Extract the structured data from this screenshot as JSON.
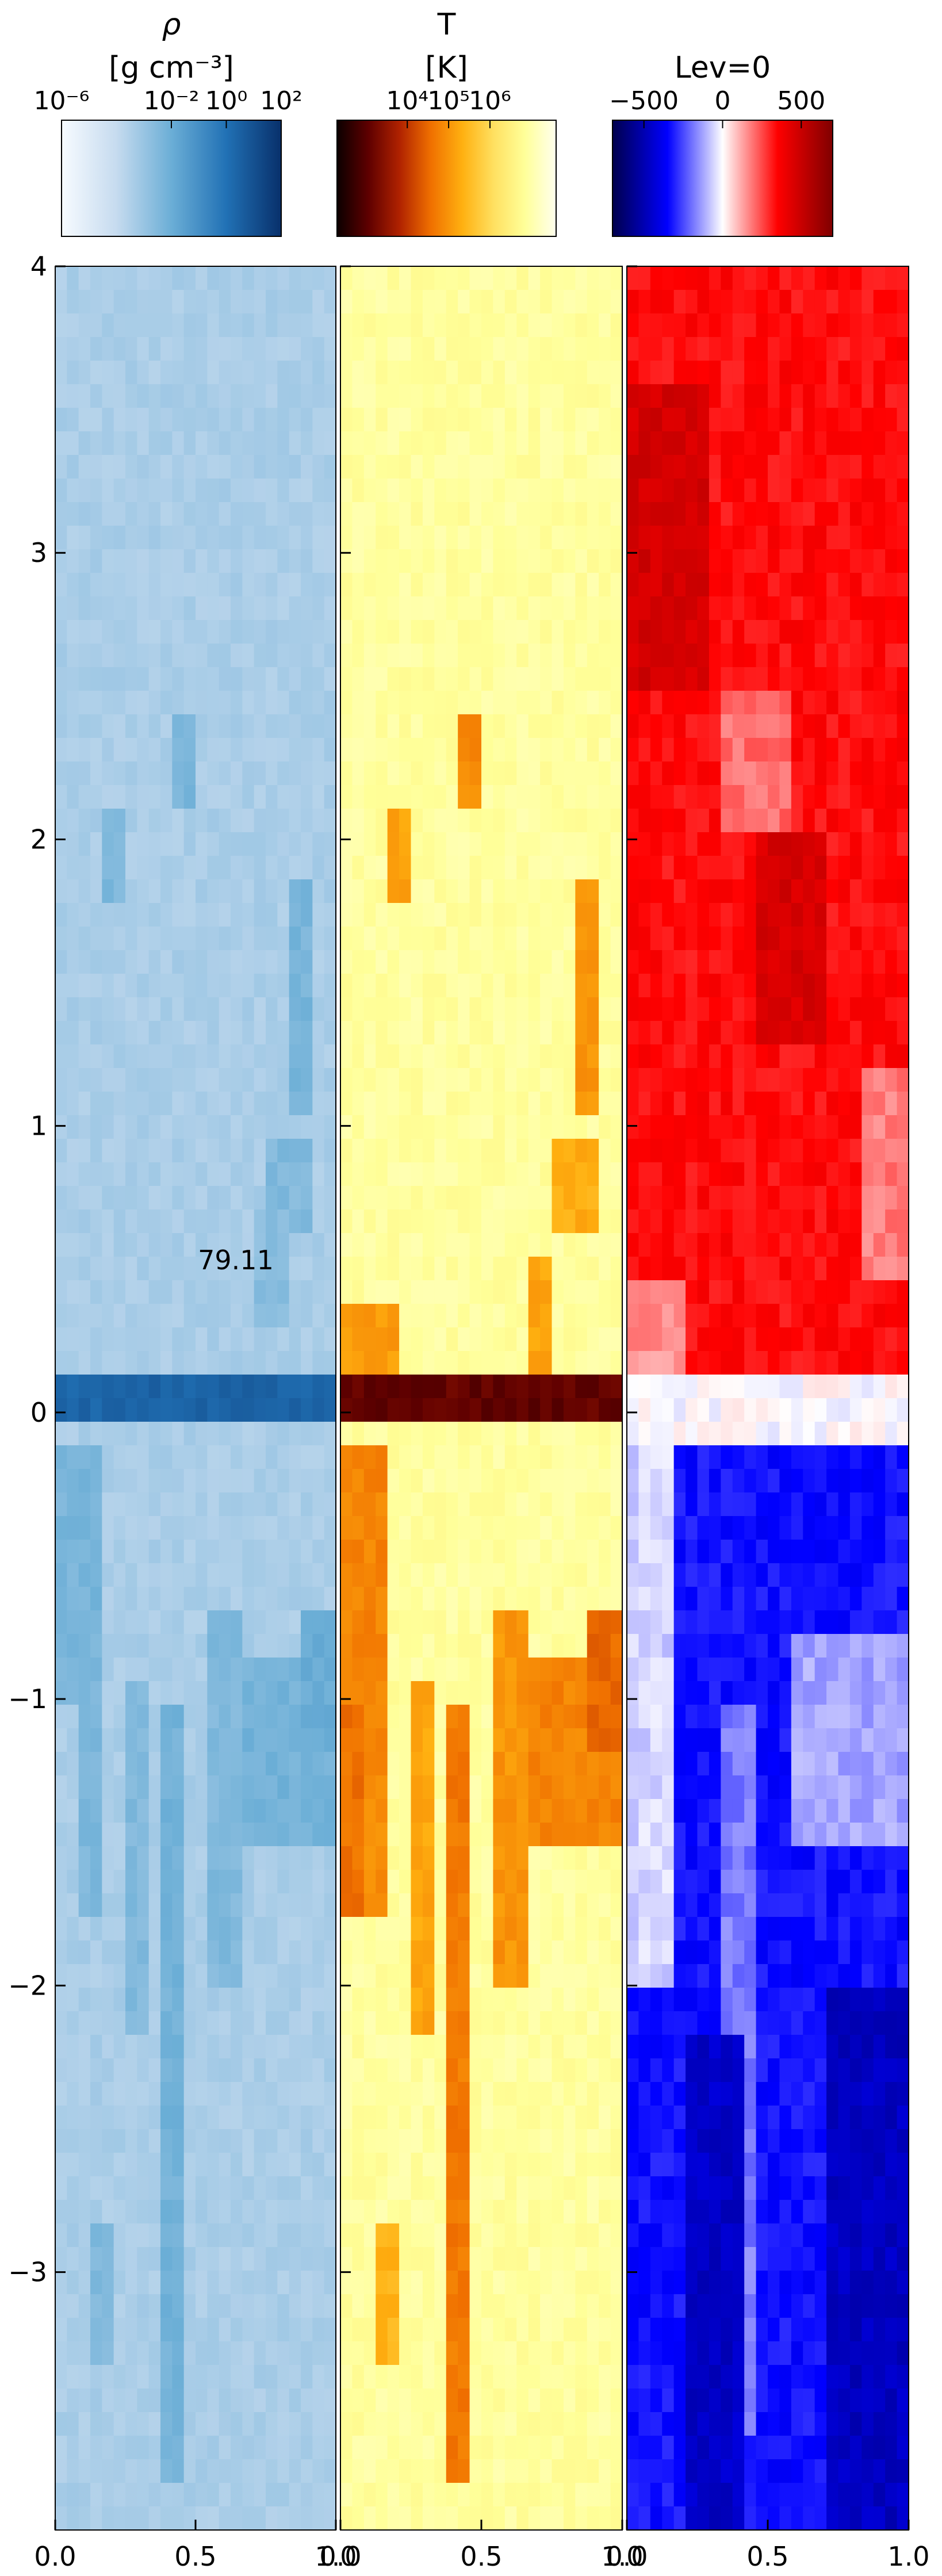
{
  "chart_data": {
    "type": "heatmap",
    "annotation": "79.11",
    "x_ticks": [
      "0.0",
      "0.5",
      "1.0"
    ],
    "y_ticks": [
      "4",
      "3",
      "2",
      "1",
      "0",
      "−1",
      "−2",
      "−3"
    ],
    "x_tick_values": [
      0,
      0.5,
      1.0
    ],
    "y_tick_values": [
      4,
      3,
      2,
      1,
      0,
      -1,
      -2,
      -3
    ],
    "xlim": [
      0,
      1.0
    ],
    "ylim": [
      -3.9,
      4.0
    ],
    "grid_resolution": {
      "cols": 24,
      "rows": 96
    },
    "panels": [
      {
        "id": "density",
        "variable": "rho",
        "colorbar_title": "ρ",
        "colorbar_unit": "[g cm⁻³]",
        "colorbar_ticks": [
          "10⁻⁶",
          "10⁻²",
          "10⁰",
          "10²"
        ],
        "colorbar_tick_values": [
          -6,
          -2,
          0,
          2
        ],
        "colorbar_range": [
          -6,
          2
        ],
        "colormap": [
          "#f7fbff",
          "#c6dbef",
          "#6baed6",
          "#2171b5",
          "#08306b"
        ],
        "background_value": -3.4,
        "features": [
          {
            "x": [
              0.0,
              1.0
            ],
            "y": [
              -0.05,
              0.12
            ],
            "value": 0.4
          },
          {
            "x": [
              0.0,
              0.15
            ],
            "y": [
              -1.0,
              -0.1
            ],
            "value": -2.3
          },
          {
            "x": [
              0.08,
              0.16
            ],
            "y": [
              -1.8,
              -1.0
            ],
            "value": -2.4
          },
          {
            "x": [
              0.25,
              0.33
            ],
            "y": [
              -2.2,
              -0.95
            ],
            "value": -2.5
          },
          {
            "x": [
              0.38,
              0.46
            ],
            "y": [
              -3.7,
              -1.0
            ],
            "value": -2.2
          },
          {
            "x": [
              0.56,
              0.66
            ],
            "y": [
              -2.0,
              -0.7
            ],
            "value": -2.5
          },
          {
            "x": [
              0.68,
              1.0
            ],
            "y": [
              -1.5,
              -0.85
            ],
            "value": -2.2
          },
          {
            "x": [
              0.86,
              1.0
            ],
            "y": [
              -1.2,
              -0.7
            ],
            "value": -2.0
          },
          {
            "x": [
              0.12,
              0.2
            ],
            "y": [
              -3.3,
              -2.8
            ],
            "value": -2.5
          },
          {
            "x": [
              0.43,
              0.52
            ],
            "y": [
              2.1,
              2.45
            ],
            "value": -2.3
          },
          {
            "x": [
              0.18,
              0.26
            ],
            "y": [
              1.8,
              2.1
            ],
            "value": -2.4
          },
          {
            "x": [
              0.82,
              0.92
            ],
            "y": [
              1.05,
              1.9
            ],
            "value": -2.3
          },
          {
            "x": [
              0.75,
              0.92
            ],
            "y": [
              0.6,
              0.95
            ],
            "value": -2.5
          },
          {
            "x": [
              0.7,
              0.85
            ],
            "y": [
              0.3,
              0.7
            ],
            "value": -2.7
          }
        ]
      },
      {
        "id": "temperature",
        "variable": "T",
        "colorbar_title": "T",
        "colorbar_unit": "[K]",
        "colorbar_ticks": [
          "10⁴",
          "10⁵",
          "10⁶"
        ],
        "colorbar_tick_values": [
          4,
          5,
          6
        ],
        "colorbar_range": [
          2.3,
          7.6
        ],
        "colormap": [
          "#0b0000",
          "#5e0000",
          "#b02200",
          "#f07000",
          "#ffb010",
          "#ffe060",
          "#ffff99",
          "#ffffee"
        ],
        "background_value": 6.9,
        "features": [
          {
            "x": [
              0.0,
              1.0
            ],
            "y": [
              -0.05,
              0.12
            ],
            "value": 3.1
          },
          {
            "x": [
              0.0,
              0.15
            ],
            "y": [
              -1.0,
              -0.1
            ],
            "value": 4.8
          },
          {
            "x": [
              0.0,
              0.12
            ],
            "y": [
              -1.8,
              -1.0
            ],
            "value": 4.6
          },
          {
            "x": [
              0.08,
              0.16
            ],
            "y": [
              -1.8,
              -1.0
            ],
            "value": 4.9
          },
          {
            "x": [
              0.25,
              0.33
            ],
            "y": [
              -2.2,
              -0.95
            ],
            "value": 5.2
          },
          {
            "x": [
              0.38,
              0.46
            ],
            "y": [
              -3.7,
              -1.0
            ],
            "value": 4.7
          },
          {
            "x": [
              0.56,
              0.66
            ],
            "y": [
              -2.0,
              -0.7
            ],
            "value": 5.0
          },
          {
            "x": [
              0.68,
              1.0
            ],
            "y": [
              -1.5,
              -0.85
            ],
            "value": 4.8
          },
          {
            "x": [
              0.86,
              1.0
            ],
            "y": [
              -1.2,
              -0.7
            ],
            "value": 4.5
          },
          {
            "x": [
              0.12,
              0.2
            ],
            "y": [
              -3.3,
              -2.8
            ],
            "value": 5.4
          },
          {
            "x": [
              0.43,
              0.52
            ],
            "y": [
              2.1,
              2.45
            ],
            "value": 4.9
          },
          {
            "x": [
              0.18,
              0.26
            ],
            "y": [
              1.8,
              2.1
            ],
            "value": 5.2
          },
          {
            "x": [
              0.82,
              0.92
            ],
            "y": [
              1.05,
              1.9
            ],
            "value": 5.0
          },
          {
            "x": [
              0.75,
              0.92
            ],
            "y": [
              0.6,
              0.95
            ],
            "value": 5.3
          },
          {
            "x": [
              0.0,
              0.2
            ],
            "y": [
              0.12,
              0.4
            ],
            "value": 5.1
          },
          {
            "x": [
              0.65,
              0.75
            ],
            "y": [
              0.15,
              0.55
            ],
            "value": 5.2
          }
        ]
      },
      {
        "id": "velocity",
        "variable": "Lev=0",
        "colorbar_title": "Lev=0",
        "colorbar_unit": "",
        "colorbar_ticks": [
          "−500",
          "0",
          "500"
        ],
        "colorbar_tick_values": [
          -500,
          0,
          500
        ],
        "colorbar_range": [
          -700,
          700
        ],
        "colormap": [
          "#00004c",
          "#0000ff",
          "#ffffff",
          "#ff0000",
          "#7f0000"
        ],
        "background_value": 340,
        "features": [
          {
            "x": [
              0.0,
              1.0
            ],
            "y": [
              -0.1,
              0.15
            ],
            "value": 0
          },
          {
            "x": [
              0.0,
              1.0
            ],
            "y": [
              -3.9,
              -0.1
            ],
            "value": -330
          },
          {
            "x": [
              0.0,
              0.15
            ],
            "y": [
              -2.0,
              -0.1
            ],
            "value": -60
          },
          {
            "x": [
              0.6,
              1.0
            ],
            "y": [
              -1.5,
              -0.8
            ],
            "value": -120
          },
          {
            "x": [
              0.35,
              0.45
            ],
            "y": [
              -3.6,
              -1.0
            ],
            "value": -180
          },
          {
            "x": [
              0.7,
              1.0
            ],
            "y": [
              -3.9,
              -2.0
            ],
            "value": -470
          },
          {
            "x": [
              0.2,
              0.4
            ],
            "y": [
              -3.9,
              -2.2
            ],
            "value": -460
          },
          {
            "x": [
              0.35,
              0.6
            ],
            "y": [
              2.0,
              2.5
            ],
            "value": 200
          },
          {
            "x": [
              0.85,
              1.0
            ],
            "y": [
              0.5,
              1.2
            ],
            "value": 180
          },
          {
            "x": [
              0.0,
              0.3
            ],
            "y": [
              2.5,
              3.6
            ],
            "value": 470
          },
          {
            "x": [
              0.45,
              0.7
            ],
            "y": [
              1.3,
              2.0
            ],
            "value": 460
          },
          {
            "x": [
              0.0,
              0.2
            ],
            "y": [
              0.15,
              0.5
            ],
            "value": 150
          }
        ]
      }
    ]
  }
}
